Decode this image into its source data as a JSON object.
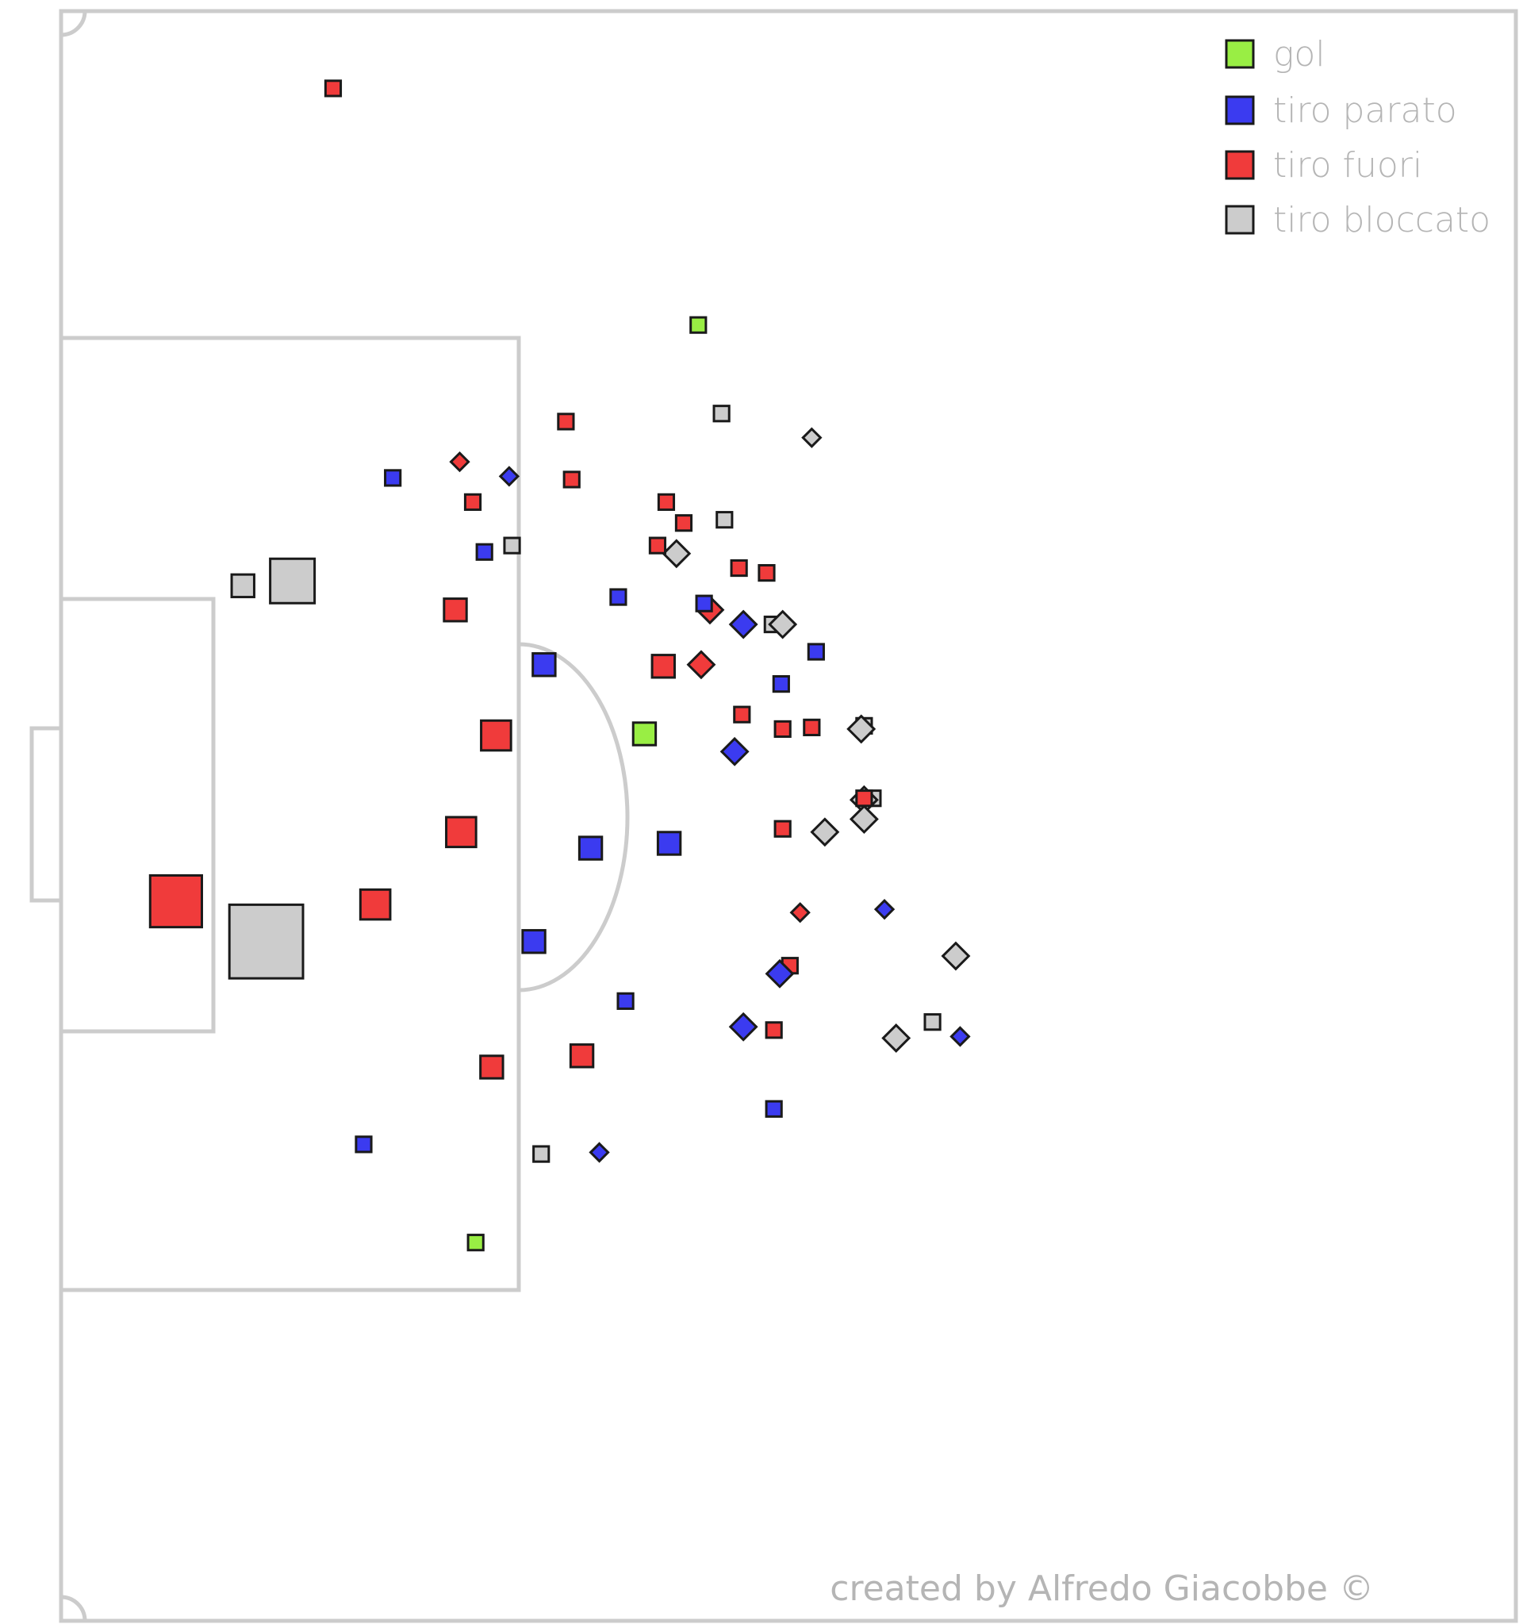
{
  "chart_data": {
    "type": "scatter",
    "title": "",
    "xlabel": "",
    "ylabel": "",
    "grid": false,
    "legend_placement": "top-right",
    "xlim": [
      0,
      100
    ],
    "ylim": [
      0,
      100
    ],
    "colors": {
      "gol": "#99ee44",
      "tiro parato": "#3b3bf0",
      "tiro fuori": "#f03b3b",
      "tiro bloccato": "#cccccc"
    },
    "legend": [
      "gol",
      "tiro parato",
      "tiro fuori",
      "tiro bloccato"
    ],
    "credit": "created by Alfredo Giacobbe ©",
    "series": [
      {
        "name": "gol",
        "points": [
          {
            "x": 43.8,
            "y": 80.5,
            "size": 1,
            "shape": "square"
          },
          {
            "x": 40.1,
            "y": 55.1,
            "size": 2,
            "shape": "square"
          },
          {
            "x": 28.5,
            "y": 23.5,
            "size": 1,
            "shape": "square"
          }
        ]
      },
      {
        "name": "tiro parato",
        "points": [
          {
            "x": 22.8,
            "y": 71.0,
            "size": 1,
            "shape": "square"
          },
          {
            "x": 30.8,
            "y": 71.1,
            "size": 1,
            "shape": "diamond"
          },
          {
            "x": 29.1,
            "y": 66.4,
            "size": 1,
            "shape": "square"
          },
          {
            "x": 38.3,
            "y": 63.6,
            "size": 1,
            "shape": "square"
          },
          {
            "x": 44.2,
            "y": 63.2,
            "size": 1,
            "shape": "square"
          },
          {
            "x": 46.9,
            "y": 61.9,
            "size": 2,
            "shape": "diamond"
          },
          {
            "x": 51.9,
            "y": 60.2,
            "size": 1,
            "shape": "square"
          },
          {
            "x": 33.2,
            "y": 59.4,
            "size": 2,
            "shape": "square"
          },
          {
            "x": 49.5,
            "y": 58.2,
            "size": 1,
            "shape": "square"
          },
          {
            "x": 46.3,
            "y": 54.0,
            "size": 2,
            "shape": "diamond"
          },
          {
            "x": 36.4,
            "y": 48.0,
            "size": 2,
            "shape": "square"
          },
          {
            "x": 41.8,
            "y": 48.3,
            "size": 2,
            "shape": "square"
          },
          {
            "x": 56.6,
            "y": 44.2,
            "size": 1,
            "shape": "diamond"
          },
          {
            "x": 32.5,
            "y": 42.2,
            "size": 2,
            "shape": "square"
          },
          {
            "x": 49.4,
            "y": 40.2,
            "size": 2,
            "shape": "diamond"
          },
          {
            "x": 38.8,
            "y": 38.5,
            "size": 1,
            "shape": "square"
          },
          {
            "x": 61.8,
            "y": 36.3,
            "size": 1,
            "shape": "diamond"
          },
          {
            "x": 46.9,
            "y": 36.9,
            "size": 2,
            "shape": "diamond"
          },
          {
            "x": 49.0,
            "y": 31.8,
            "size": 1,
            "shape": "square"
          },
          {
            "x": 20.8,
            "y": 29.6,
            "size": 1,
            "shape": "square"
          },
          {
            "x": 37.0,
            "y": 29.1,
            "size": 1,
            "shape": "diamond"
          }
        ]
      },
      {
        "name": "tiro fuori",
        "points": [
          {
            "x": 18.7,
            "y": 95.2,
            "size": 1,
            "shape": "square"
          },
          {
            "x": 34.7,
            "y": 74.5,
            "size": 1,
            "shape": "square"
          },
          {
            "x": 27.4,
            "y": 72.0,
            "size": 1,
            "shape": "diamond"
          },
          {
            "x": 35.1,
            "y": 70.9,
            "size": 1,
            "shape": "square"
          },
          {
            "x": 28.3,
            "y": 69.5,
            "size": 1,
            "shape": "square"
          },
          {
            "x": 41.6,
            "y": 69.5,
            "size": 1,
            "shape": "square"
          },
          {
            "x": 42.8,
            "y": 68.2,
            "size": 1,
            "shape": "square"
          },
          {
            "x": 41.0,
            "y": 66.8,
            "size": 1,
            "shape": "square"
          },
          {
            "x": 46.6,
            "y": 65.4,
            "size": 1,
            "shape": "square"
          },
          {
            "x": 48.5,
            "y": 65.1,
            "size": 1,
            "shape": "square"
          },
          {
            "x": 27.1,
            "y": 62.8,
            "size": 2,
            "shape": "square"
          },
          {
            "x": 44.6,
            "y": 62.8,
            "size": 2,
            "shape": "diamond"
          },
          {
            "x": 41.4,
            "y": 59.3,
            "size": 2,
            "shape": "square"
          },
          {
            "x": 44.0,
            "y": 59.4,
            "size": 2,
            "shape": "diamond"
          },
          {
            "x": 46.8,
            "y": 56.3,
            "size": 1,
            "shape": "square"
          },
          {
            "x": 51.6,
            "y": 55.5,
            "size": 1,
            "shape": "square"
          },
          {
            "x": 49.6,
            "y": 55.4,
            "size": 1,
            "shape": "square"
          },
          {
            "x": 29.9,
            "y": 55.0,
            "size": 3,
            "shape": "square"
          },
          {
            "x": 55.2,
            "y": 51.1,
            "size": 1,
            "shape": "square"
          },
          {
            "x": 27.5,
            "y": 49.0,
            "size": 3,
            "shape": "square"
          },
          {
            "x": 49.6,
            "y": 49.2,
            "size": 1,
            "shape": "square"
          },
          {
            "x": 7.9,
            "y": 44.7,
            "size": 6,
            "shape": "square"
          },
          {
            "x": 21.6,
            "y": 44.5,
            "size": 3,
            "shape": "square"
          },
          {
            "x": 50.8,
            "y": 44.0,
            "size": 1,
            "shape": "diamond"
          },
          {
            "x": 50.1,
            "y": 40.7,
            "size": 1,
            "shape": "square"
          },
          {
            "x": 49.0,
            "y": 36.7,
            "size": 1,
            "shape": "square"
          },
          {
            "x": 35.8,
            "y": 35.1,
            "size": 2,
            "shape": "square"
          },
          {
            "x": 29.6,
            "y": 34.4,
            "size": 2,
            "shape": "square"
          }
        ]
      },
      {
        "name": "tiro bloccato",
        "points": [
          {
            "x": 45.4,
            "y": 75.0,
            "size": 1,
            "shape": "square"
          },
          {
            "x": 51.6,
            "y": 73.5,
            "size": 1,
            "shape": "diamond"
          },
          {
            "x": 45.6,
            "y": 68.4,
            "size": 1,
            "shape": "square"
          },
          {
            "x": 31.0,
            "y": 66.8,
            "size": 1,
            "shape": "square"
          },
          {
            "x": 42.3,
            "y": 66.3,
            "size": 2,
            "shape": "diamond"
          },
          {
            "x": 15.9,
            "y": 64.6,
            "size": 5,
            "shape": "square"
          },
          {
            "x": 12.5,
            "y": 64.3,
            "size": 2,
            "shape": "square"
          },
          {
            "x": 48.9,
            "y": 61.9,
            "size": 1,
            "shape": "square"
          },
          {
            "x": 49.6,
            "y": 61.9,
            "size": 2,
            "shape": "diamond"
          },
          {
            "x": 55.2,
            "y": 55.6,
            "size": 1,
            "shape": "square"
          },
          {
            "x": 55.0,
            "y": 55.4,
            "size": 2,
            "shape": "diamond"
          },
          {
            "x": 55.8,
            "y": 51.1,
            "size": 1,
            "shape": "square"
          },
          {
            "x": 55.2,
            "y": 51.0,
            "size": 2,
            "shape": "diamond"
          },
          {
            "x": 55.2,
            "y": 49.8,
            "size": 2,
            "shape": "diamond"
          },
          {
            "x": 52.5,
            "y": 49.0,
            "size": 2,
            "shape": "diamond"
          },
          {
            "x": 14.1,
            "y": 42.2,
            "size": 9,
            "shape": "square"
          },
          {
            "x": 61.5,
            "y": 41.3,
            "size": 2,
            "shape": "diamond"
          },
          {
            "x": 59.9,
            "y": 37.2,
            "size": 1,
            "shape": "square"
          },
          {
            "x": 57.4,
            "y": 36.2,
            "size": 2,
            "shape": "diamond"
          },
          {
            "x": 33.0,
            "y": 29.0,
            "size": 1,
            "shape": "square"
          }
        ]
      }
    ]
  }
}
